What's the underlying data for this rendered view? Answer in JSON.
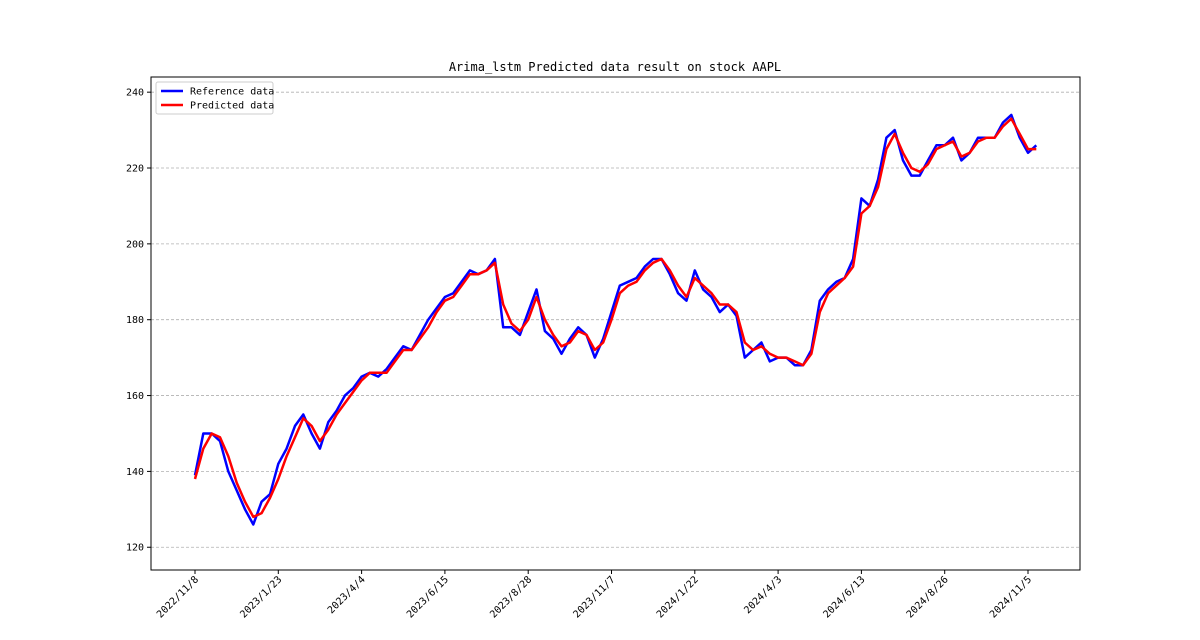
{
  "chart_data": {
    "type": "line",
    "title": "Arima_lstm Predicted data result on stock AAPL",
    "categories": [
      "2022/11/8",
      null,
      null,
      null,
      null,
      null,
      null,
      null,
      null,
      null,
      "2023/1/23",
      null,
      null,
      null,
      null,
      null,
      null,
      null,
      null,
      null,
      "2023/4/4",
      null,
      null,
      null,
      null,
      null,
      null,
      null,
      null,
      null,
      "2023/6/15",
      null,
      null,
      null,
      null,
      null,
      null,
      null,
      null,
      null,
      "2023/8/28",
      null,
      null,
      null,
      null,
      null,
      null,
      null,
      null,
      null,
      "2023/11/7",
      null,
      null,
      null,
      null,
      null,
      null,
      null,
      null,
      null,
      "2024/1/22",
      null,
      null,
      null,
      null,
      null,
      null,
      null,
      null,
      null,
      "2024/4/3",
      null,
      null,
      null,
      null,
      null,
      null,
      null,
      null,
      null,
      "2024/6/13",
      null,
      null,
      null,
      null,
      null,
      null,
      null,
      null,
      null,
      "2024/8/26",
      null,
      null,
      null,
      null,
      null,
      null,
      null,
      null,
      null,
      "2024/11/5",
      null
    ],
    "series": [
      {
        "name": "Reference data",
        "color": "#0000ff",
        "values": [
          139,
          150,
          150,
          148,
          140,
          135,
          130,
          126,
          132,
          134,
          142,
          146,
          152,
          155,
          150,
          146,
          153,
          156,
          160,
          162,
          165,
          166,
          165,
          167,
          170,
          173,
          172,
          176,
          180,
          183,
          186,
          187,
          190,
          193,
          192,
          193,
          196,
          178,
          178,
          176,
          182,
          188,
          177,
          175,
          171,
          175,
          178,
          176,
          170,
          175,
          182,
          189,
          190,
          191,
          194,
          196,
          196,
          192,
          187,
          185,
          193,
          188,
          186,
          182,
          184,
          181,
          170,
          172,
          174,
          169,
          170,
          170,
          168,
          168,
          172,
          185,
          188,
          190,
          191,
          196,
          212,
          210,
          217,
          228,
          230,
          222,
          218,
          218,
          222,
          226,
          226,
          228,
          222,
          224,
          228,
          228,
          228,
          232,
          234,
          228,
          224,
          226
        ]
      },
      {
        "name": "Predicted data",
        "color": "#ff0000",
        "values": [
          138,
          146,
          150,
          149,
          144,
          137,
          132,
          128,
          129,
          133,
          138,
          144,
          149,
          154,
          152,
          148,
          151,
          155,
          158,
          161,
          164,
          166,
          166,
          166,
          169,
          172,
          172,
          175,
          178,
          182,
          185,
          186,
          189,
          192,
          192,
          193,
          195,
          184,
          179,
          177,
          180,
          186,
          180,
          176,
          173,
          174,
          177,
          176,
          172,
          174,
          180,
          187,
          189,
          190,
          193,
          195,
          196,
          193,
          189,
          186,
          191,
          189,
          187,
          184,
          184,
          182,
          174,
          172,
          173,
          171,
          170,
          170,
          169,
          168,
          171,
          182,
          187,
          189,
          191,
          194,
          208,
          210,
          215,
          225,
          229,
          224,
          220,
          219,
          221,
          225,
          226,
          227,
          223,
          224,
          227,
          228,
          228,
          231,
          233,
          229,
          225,
          225
        ]
      }
    ],
    "ylim": [
      114,
      244
    ],
    "yticks": [
      120,
      140,
      160,
      180,
      200,
      220,
      240
    ],
    "grid": true,
    "legend": "upper left"
  }
}
